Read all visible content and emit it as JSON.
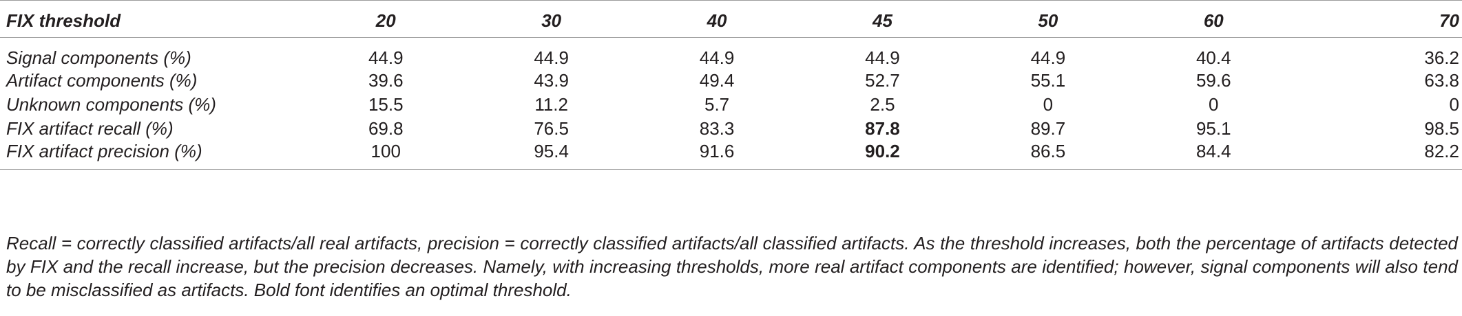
{
  "table": {
    "header": {
      "label": "FIX threshold",
      "thresholds": [
        "20",
        "30",
        "40",
        "45",
        "50",
        "60",
        "70"
      ]
    },
    "rows": [
      {
        "label": "Signal components (%)",
        "values": [
          "44.9",
          "44.9",
          "44.9",
          "44.9",
          "44.9",
          "40.4",
          "36.2"
        ]
      },
      {
        "label": "Artifact components (%)",
        "values": [
          "39.6",
          "43.9",
          "49.4",
          "52.7",
          "55.1",
          "59.6",
          "63.8"
        ]
      },
      {
        "label": "Unknown components (%)",
        "values": [
          "15.5",
          "11.2",
          "5.7",
          "2.5",
          "0",
          "0",
          "0"
        ]
      },
      {
        "label": "FIX artifact recall (%)",
        "values": [
          "69.8",
          "76.5",
          "83.3",
          "87.8",
          "89.7",
          "95.1",
          "98.5"
        ]
      },
      {
        "label": "FIX artifact precision (%)",
        "values": [
          "100",
          "95.4",
          "91.6",
          "90.2",
          "86.5",
          "84.4",
          "82.2"
        ]
      }
    ]
  },
  "note": "Recall = correctly classified artifacts/all real artifacts, precision = correctly classified artifacts/all classified artifacts. As the threshold increases, both the percentage of artifacts detected by FIX and the recall increase, but the precision decreases. Namely, with increasing thresholds, more real artifact components are identified; however, signal components will also tend to be misclassified as artifacts. Bold font identifies an optimal threshold."
}
